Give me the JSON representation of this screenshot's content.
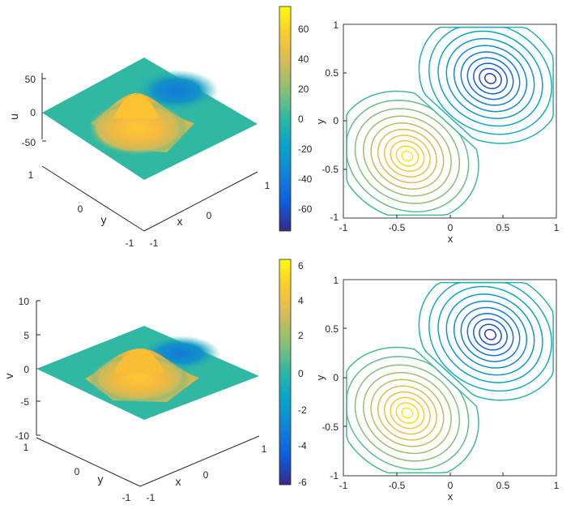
{
  "chart_data": [
    {
      "type": "surface",
      "zlabel": "u",
      "xlabel": "x",
      "ylabel": "y",
      "zticks": [
        "50",
        "0",
        "-50"
      ],
      "xticks": [
        "-1",
        "0",
        "1"
      ],
      "yticks": [
        "1",
        "0",
        "-1"
      ],
      "zlim": [
        -75,
        75
      ],
      "peak": 75,
      "colormap": "parula",
      "colorbar": {
        "ticks": [
          "60",
          "40",
          "20",
          "0",
          "-20",
          "-40",
          "-60"
        ],
        "values": [
          60,
          40,
          20,
          0,
          -20,
          -40,
          -60
        ],
        "range": [
          -75,
          75
        ]
      }
    },
    {
      "type": "contour",
      "xlabel": "x",
      "ylabel": "y",
      "xticks": [
        "-1",
        "-0.5",
        "0",
        "0.5",
        "1"
      ],
      "yticks": [
        "1",
        "0.5",
        "0",
        "-0.5",
        "-1"
      ],
      "xlim": [
        -1,
        1
      ],
      "ylim": [
        -1,
        1
      ],
      "levels": 20
    },
    {
      "type": "surface",
      "zlabel": "v",
      "xlabel": "x",
      "ylabel": "y",
      "zticks": [
        "10",
        "5",
        "0",
        "-5",
        "-10"
      ],
      "xticks": [
        "-1",
        "0",
        "1"
      ],
      "yticks": [
        "1",
        "0",
        "-1"
      ],
      "zlim": [
        -10,
        10
      ],
      "peak": 6.2,
      "colormap": "parula",
      "colorbar": {
        "ticks": [
          "6",
          "4",
          "2",
          "0",
          "-2",
          "-4",
          "-6"
        ],
        "values": [
          6,
          4,
          2,
          0,
          -2,
          -4,
          -6
        ],
        "range": [
          -6.2,
          6.2
        ]
      }
    },
    {
      "type": "contour",
      "xlabel": "x",
      "ylabel": "y",
      "xticks": [
        "-1",
        "-0.5",
        "0",
        "0.5",
        "1"
      ],
      "yticks": [
        "1",
        "0.5",
        "0",
        "-0.5",
        "-1"
      ],
      "xlim": [
        -1,
        1
      ],
      "ylim": [
        -1,
        1
      ],
      "levels": 20
    }
  ]
}
